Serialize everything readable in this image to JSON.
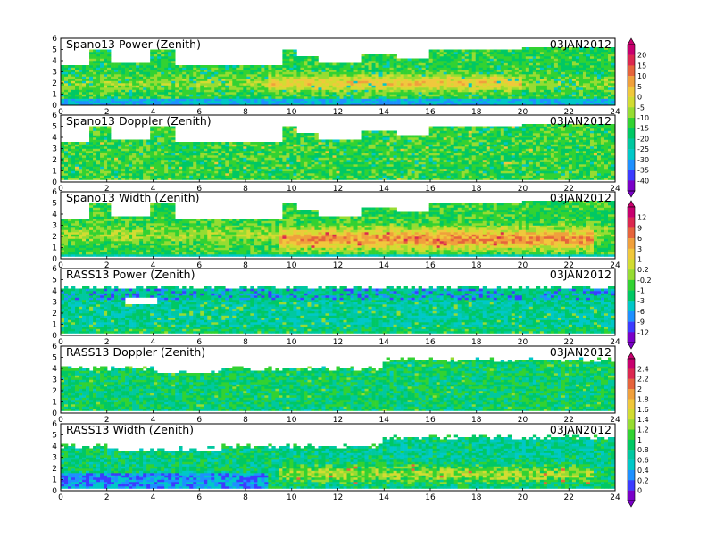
{
  "figure": {
    "x_ticks": [
      "0",
      "2",
      "4",
      "6",
      "8",
      "10",
      "12",
      "14",
      "16",
      "18",
      "20",
      "22",
      "24"
    ],
    "y_ticks": [
      "0",
      "1",
      "2",
      "3",
      "4",
      "5",
      "6"
    ]
  },
  "panels": [
    {
      "title": "Spano13 Power (Zenith)",
      "date": "03JAN2012",
      "kind": "sp_power"
    },
    {
      "title": "Spano13 Doppler (Zenith)",
      "date": "03JAN2012",
      "kind": "sp_doppler"
    },
    {
      "title": "Spano13 Width (Zenith)",
      "date": "03JAN2012",
      "kind": "sp_width"
    },
    {
      "title": "RASS13 Power (Zenith)",
      "date": "03JAN2012",
      "kind": "rass_power"
    },
    {
      "title": "RASS13 Doppler (Zenith)",
      "date": "03JAN2012",
      "kind": "rass_doppler"
    },
    {
      "title": "RASS13 Width (Zenith)",
      "date": "03JAN2012",
      "kind": "rass_width"
    }
  ],
  "colorbars": [
    {
      "labels": [
        "20",
        "15",
        "10",
        "5",
        "0",
        "-5",
        "-10",
        "-15",
        "-20",
        "-25",
        "-30",
        "-35",
        "-40"
      ]
    },
    {
      "labels": [
        "12",
        "9",
        "6",
        "3",
        "1",
        "0.2",
        "-0.2",
        "-1",
        "-3",
        "-6",
        "-9",
        "-12"
      ]
    },
    {
      "labels": [
        "2.4",
        "2.2",
        "2",
        "1.8",
        "1.6",
        "1.4",
        "1.2",
        "1",
        "0.8",
        "0.6",
        "0.4",
        "0.2",
        "0"
      ]
    }
  ],
  "palette": [
    "#7a00c8",
    "#3c3cff",
    "#1e90ff",
    "#00c8c8",
    "#00c8a0",
    "#00c864",
    "#32d232",
    "#96dc32",
    "#d2dc32",
    "#f0c83c",
    "#f0a03c",
    "#e6643c",
    "#dc2850",
    "#c8006e"
  ],
  "chart_data": {
    "type": "heatmap",
    "x_range": [
      0,
      24
    ],
    "y_range": [
      0,
      6
    ],
    "panels": [
      {
        "title": "Spano13 Power (Zenith)",
        "date": "03JAN2012",
        "colorbar": [
          "20",
          "15",
          "10",
          "5",
          "0",
          "-5",
          "-10",
          "-15",
          "-20",
          "-25",
          "-30",
          "-35",
          "-40"
        ]
      },
      {
        "title": "Spano13 Doppler (Zenith)",
        "date": "03JAN2012",
        "colorbar": [
          "20",
          "15",
          "10",
          "5",
          "0",
          "-5",
          "-10",
          "-15",
          "-20",
          "-25",
          "-30",
          "-35",
          "-40"
        ]
      },
      {
        "title": "Spano13 Width (Zenith)",
        "date": "03JAN2012",
        "colorbar": [
          "12",
          "9",
          "6",
          "3",
          "1",
          "0.2",
          "-0.2",
          "-1",
          "-3",
          "-6",
          "-9",
          "-12"
        ]
      },
      {
        "title": "RASS13 Power (Zenith)",
        "date": "03JAN2012",
        "colorbar": [
          "12",
          "9",
          "6",
          "3",
          "1",
          "0.2",
          "-0.2",
          "-1",
          "-3",
          "-6",
          "-9",
          "-12"
        ]
      },
      {
        "title": "RASS13 Doppler (Zenith)",
        "date": "03JAN2012",
        "colorbar": [
          "2.4",
          "2.2",
          "2",
          "1.8",
          "1.6",
          "1.4",
          "1.2",
          "1",
          "0.8",
          "0.6",
          "0.4",
          "0.2",
          "0"
        ]
      },
      {
        "title": "RASS13 Width (Zenith)",
        "date": "03JAN2012",
        "colorbar": [
          "2.4",
          "2.2",
          "2",
          "1.8",
          "1.6",
          "1.4",
          "1.2",
          "1",
          "0.8",
          "0.6",
          "0.4",
          "0.2",
          "0"
        ]
      }
    ]
  }
}
